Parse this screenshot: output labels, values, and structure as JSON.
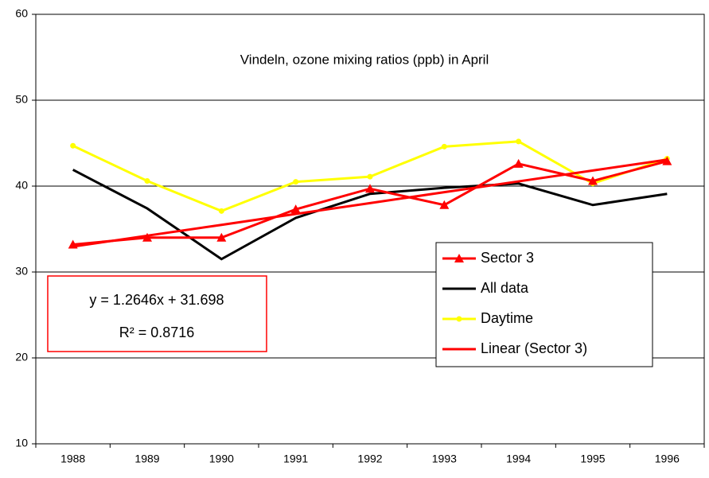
{
  "chart_data": {
    "type": "line",
    "title": "Vindeln, ozone mixing ratios (ppb) in April",
    "categories": [
      "1988",
      "1989",
      "1990",
      "1991",
      "1992",
      "1993",
      "1994",
      "1995",
      "1996"
    ],
    "series": [
      {
        "name": "Sector 3",
        "color": "#ff0000",
        "marker": "triangle",
        "values": [
          33.2,
          34.0,
          34.0,
          37.3,
          39.7,
          37.8,
          42.6,
          40.6,
          42.9
        ]
      },
      {
        "name": "All data",
        "color": "#000000",
        "marker": "none",
        "values": [
          41.9,
          37.4,
          31.5,
          36.3,
          39.1,
          39.8,
          40.3,
          37.8,
          39.1
        ]
      },
      {
        "name": "Daytime",
        "color": "#ffff00",
        "marker": "circle",
        "values": [
          44.7,
          40.6,
          37.1,
          40.5,
          41.1,
          44.6,
          45.2,
          40.3,
          43.2
        ]
      },
      {
        "name": "Linear (Sector 3)",
        "color": "#ff0000",
        "marker": "none",
        "values": [
          32.96,
          34.23,
          35.49,
          36.76,
          38.02,
          39.29,
          40.55,
          41.82,
          43.08
        ]
      }
    ],
    "annotations": [
      "y = 1.2646x + 31.698",
      "R² = 0.8716"
    ],
    "ylim": [
      10,
      60
    ],
    "yticks": [
      10,
      20,
      30,
      40,
      50,
      60
    ],
    "grid": true,
    "legend": "right"
  }
}
